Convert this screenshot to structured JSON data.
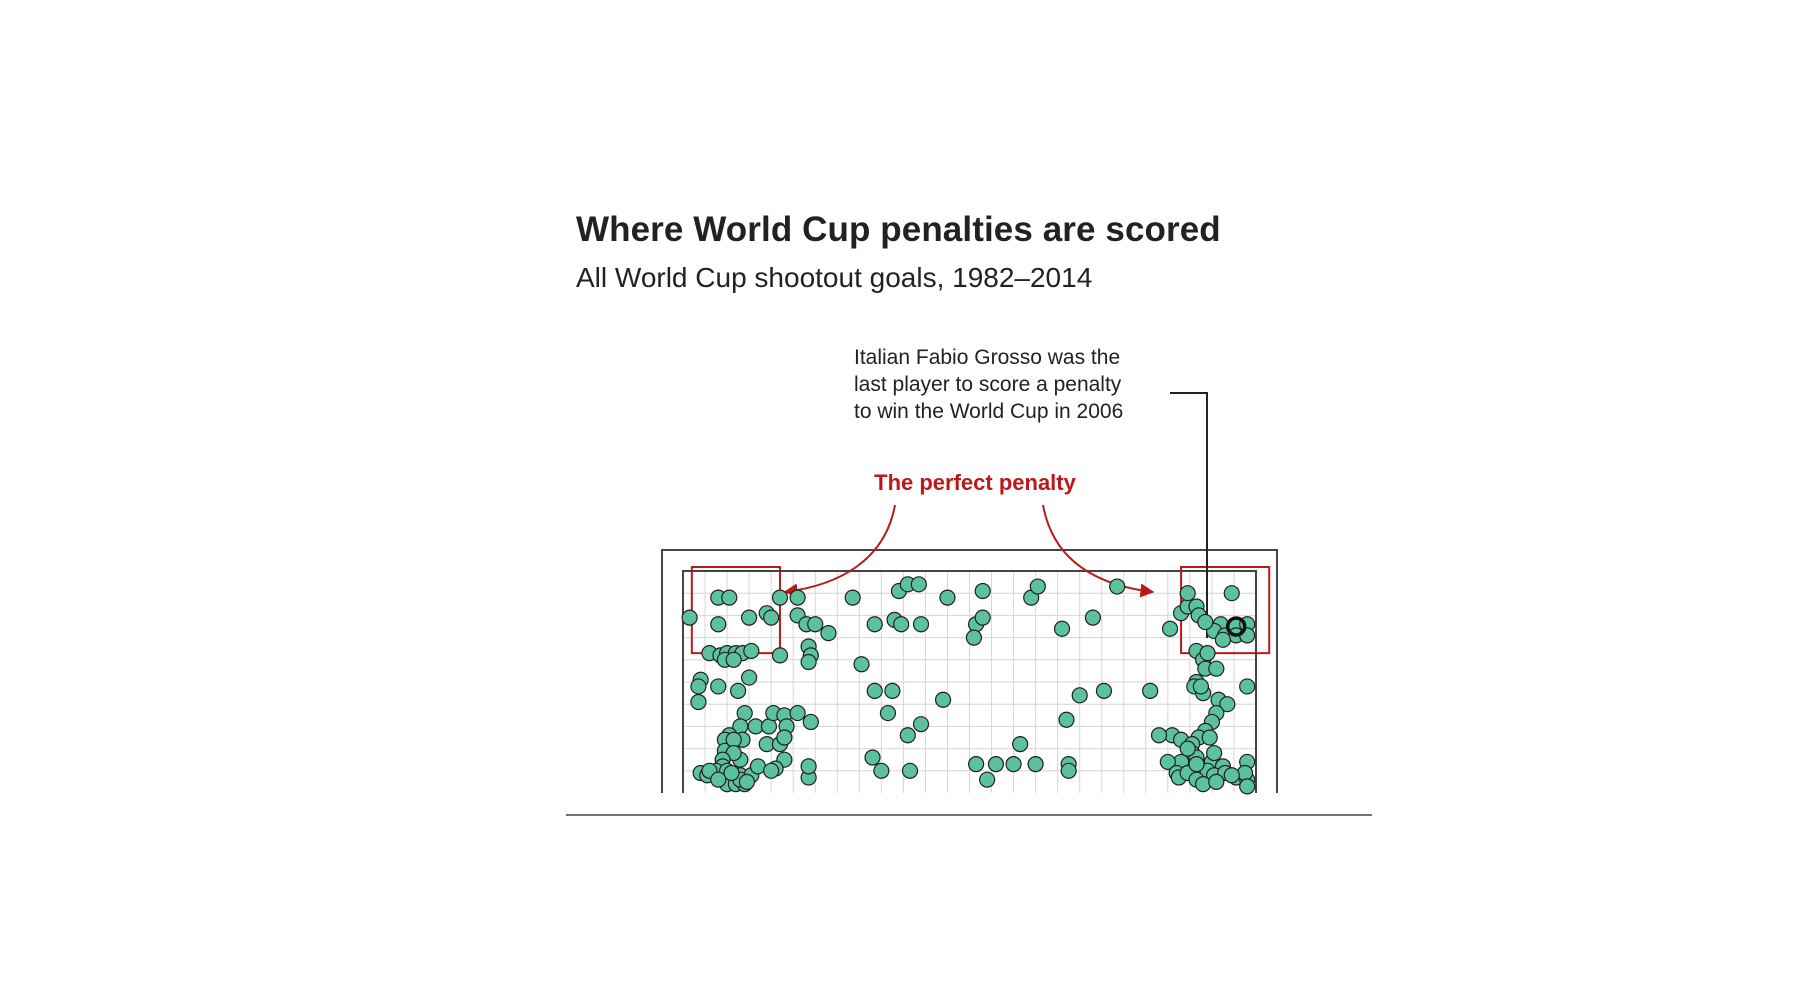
{
  "chart_data": {
    "type": "scatter",
    "title": "Where World Cup penalties are scored",
    "subtitle": "All World Cup shootout goals, 1982–2014",
    "xlabel": "",
    "ylabel": "",
    "xlim": [
      0,
      26
    ],
    "ylim": [
      0,
      10
    ],
    "grid": true,
    "annotations": {
      "perfect_penalty": {
        "text": "The perfect penalty",
        "zones": [
          {
            "name": "top-left",
            "x": [
              0.4,
              4.4
            ],
            "y": [
              6.3,
              10.0
            ]
          },
          {
            "name": "top-right",
            "x": [
              22.6,
              26.6
            ],
            "y": [
              6.3,
              10.0
            ]
          }
        ]
      },
      "grosso": {
        "lines": [
          "Italian Fabio Grosso was the",
          "last player to score a penalty",
          "to win the World Cup in 2006"
        ],
        "point": {
          "x": 25.1,
          "y": 7.5
        }
      }
    },
    "series": [
      {
        "name": "Shootout goals",
        "points": [
          [
            1.6,
            8.8
          ],
          [
            2.1,
            8.8
          ],
          [
            1.6,
            7.6
          ],
          [
            0.3,
            7.9
          ],
          [
            3.0,
            7.9
          ],
          [
            3.8,
            8.1
          ],
          [
            4.0,
            7.9
          ],
          [
            1.2,
            6.3
          ],
          [
            1.7,
            6.2
          ],
          [
            2.0,
            6.3
          ],
          [
            2.4,
            6.3
          ],
          [
            2.7,
            6.3
          ],
          [
            3.1,
            6.4
          ],
          [
            1.9,
            6.0
          ],
          [
            2.3,
            6.0
          ],
          [
            0.8,
            5.1
          ],
          [
            0.7,
            4.8
          ],
          [
            1.6,
            4.8
          ],
          [
            0.7,
            4.1
          ],
          [
            2.5,
            4.6
          ],
          [
            3.0,
            5.2
          ],
          [
            2.8,
            3.6
          ],
          [
            2.6,
            3.0
          ],
          [
            2.1,
            2.6
          ],
          [
            2.7,
            2.4
          ],
          [
            3.3,
            3.0
          ],
          [
            3.9,
            3.0
          ],
          [
            4.1,
            3.6
          ],
          [
            1.9,
            2.4
          ],
          [
            1.9,
            1.9
          ],
          [
            2.3,
            2.4
          ],
          [
            3.8,
            2.2
          ],
          [
            4.4,
            2.2
          ],
          [
            4.6,
            1.5
          ],
          [
            2.6,
            1.5
          ],
          [
            2.3,
            1.8
          ],
          [
            1.8,
            1.5
          ],
          [
            0.8,
            0.9
          ],
          [
            1.1,
            0.8
          ],
          [
            1.8,
            0.8
          ],
          [
            2.2,
            0.7
          ],
          [
            2.6,
            0.8
          ],
          [
            3.1,
            0.8
          ],
          [
            3.4,
            1.2
          ],
          [
            4.2,
            1.1
          ],
          [
            1.8,
            1.2
          ],
          [
            1.5,
            1.0
          ],
          [
            2.0,
            1.0
          ],
          [
            1.2,
            1.0
          ],
          [
            4.0,
            1.0
          ],
          [
            2.0,
            0.4
          ],
          [
            2.4,
            0.4
          ],
          [
            2.8,
            0.4
          ],
          [
            2.6,
            0.6
          ],
          [
            2.2,
            0.9
          ],
          [
            1.6,
            0.6
          ],
          [
            2.9,
            0.5
          ],
          [
            4.6,
            3.5
          ],
          [
            4.7,
            3.0
          ],
          [
            4.6,
            2.5
          ],
          [
            5.8,
            3.2
          ],
          [
            5.2,
            3.6
          ],
          [
            5.7,
            0.7
          ],
          [
            5.7,
            1.2
          ],
          [
            4.4,
            8.8
          ],
          [
            5.2,
            8.8
          ],
          [
            5.2,
            8.0
          ],
          [
            5.6,
            7.6
          ],
          [
            6.0,
            7.6
          ],
          [
            5.7,
            6.6
          ],
          [
            5.8,
            6.2
          ],
          [
            4.4,
            6.2
          ],
          [
            5.7,
            5.9
          ],
          [
            6.6,
            7.2
          ],
          [
            7.7,
            8.8
          ],
          [
            8.7,
            7.6
          ],
          [
            8.1,
            5.8
          ],
          [
            9.6,
            7.8
          ],
          [
            9.9,
            7.6
          ],
          [
            10.8,
            7.6
          ],
          [
            9.8,
            9.1
          ],
          [
            10.2,
            9.4
          ],
          [
            10.7,
            9.4
          ],
          [
            12.0,
            8.8
          ],
          [
            13.6,
            9.1
          ],
          [
            13.3,
            7.6
          ],
          [
            13.6,
            7.9
          ],
          [
            13.2,
            7.0
          ],
          [
            15.8,
            8.8
          ],
          [
            16.1,
            9.3
          ],
          [
            17.2,
            7.4
          ],
          [
            18.6,
            7.9
          ],
          [
            19.7,
            9.3
          ],
          [
            8.7,
            4.6
          ],
          [
            9.5,
            4.6
          ],
          [
            11.8,
            4.2
          ],
          [
            9.3,
            3.6
          ],
          [
            10.2,
            2.6
          ],
          [
            10.8,
            3.1
          ],
          [
            8.6,
            1.6
          ],
          [
            9.0,
            1.0
          ],
          [
            10.3,
            1.0
          ],
          [
            13.3,
            1.3
          ],
          [
            13.8,
            0.6
          ],
          [
            14.2,
            1.3
          ],
          [
            15.0,
            1.3
          ],
          [
            15.3,
            2.2
          ],
          [
            16.0,
            1.3
          ],
          [
            17.5,
            1.3
          ],
          [
            17.5,
            1.0
          ],
          [
            18.0,
            4.4
          ],
          [
            19.1,
            4.6
          ],
          [
            17.4,
            3.3
          ],
          [
            22.6,
            8.1
          ],
          [
            22.1,
            7.4
          ],
          [
            22.9,
            8.4
          ],
          [
            23.3,
            8.4
          ],
          [
            22.9,
            9.0
          ],
          [
            24.9,
            9.0
          ],
          [
            23.4,
            8.0
          ],
          [
            25.1,
            7.5
          ],
          [
            24.4,
            7.6
          ],
          [
            24.1,
            7.3
          ],
          [
            24.6,
            7.1
          ],
          [
            25.1,
            7.1
          ],
          [
            25.6,
            7.6
          ],
          [
            25.6,
            7.1
          ],
          [
            23.3,
            6.4
          ],
          [
            23.6,
            6.0
          ],
          [
            23.8,
            6.3
          ],
          [
            23.7,
            5.6
          ],
          [
            24.2,
            5.6
          ],
          [
            23.3,
            5.0
          ],
          [
            23.2,
            4.8
          ],
          [
            23.6,
            4.5
          ],
          [
            24.3,
            4.2
          ],
          [
            24.7,
            4.0
          ],
          [
            25.6,
            4.8
          ],
          [
            24.2,
            3.6
          ],
          [
            24.0,
            3.2
          ],
          [
            23.7,
            2.8
          ],
          [
            23.4,
            2.5
          ],
          [
            23.9,
            2.5
          ],
          [
            22.2,
            2.6
          ],
          [
            22.6,
            2.4
          ],
          [
            23.1,
            2.2
          ],
          [
            23.1,
            1.8
          ],
          [
            22.6,
            1.4
          ],
          [
            23.3,
            1.6
          ],
          [
            24.0,
            1.4
          ],
          [
            24.5,
            1.2
          ],
          [
            25.6,
            1.4
          ],
          [
            23.8,
            1.0
          ],
          [
            24.1,
            0.8
          ],
          [
            24.6,
            0.9
          ],
          [
            25.1,
            0.7
          ],
          [
            25.6,
            0.6
          ],
          [
            25.5,
            0.9
          ],
          [
            22.0,
            1.4
          ],
          [
            22.4,
            0.9
          ],
          [
            22.5,
            0.7
          ],
          [
            22.9,
            0.9
          ],
          [
            23.3,
            0.6
          ],
          [
            23.6,
            0.4
          ],
          [
            24.2,
            0.5
          ],
          [
            24.9,
            0.8
          ],
          [
            25.6,
            0.3
          ],
          [
            23.3,
            1.3
          ],
          [
            22.9,
            2.0
          ],
          [
            24.1,
            1.8
          ],
          [
            23.5,
            4.8
          ],
          [
            23.7,
            7.7
          ],
          [
            24.5,
            6.9
          ],
          [
            21.2,
            4.6
          ],
          [
            21.6,
            2.6
          ]
        ]
      }
    ]
  }
}
